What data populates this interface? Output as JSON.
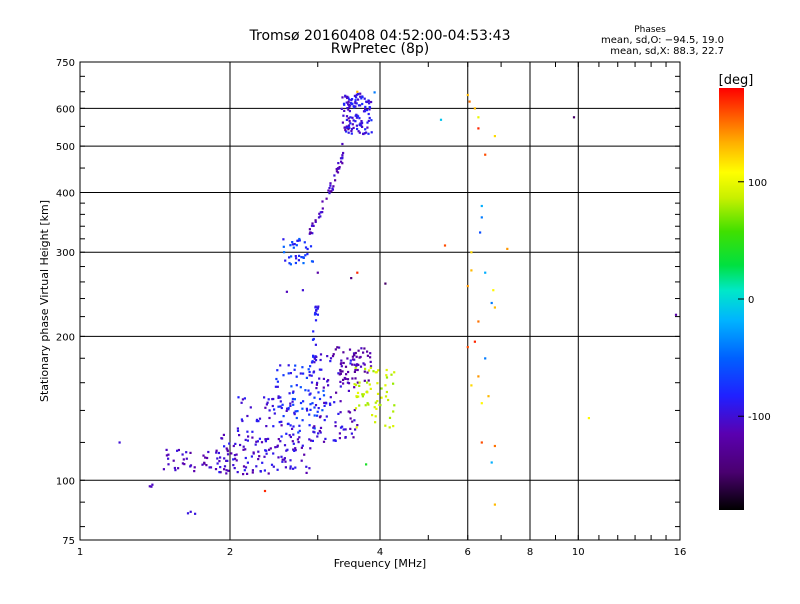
{
  "chart_data": {
    "type": "scatter",
    "title": "Tromsø 20160408 04:52:00-04:53:43",
    "subtitle": "RwPretec (8p)",
    "xlabel": "Frequency [MHz]",
    "ylabel": "Stationary phase Virtual Height [km]",
    "x_scale": "log",
    "y_scale": "log",
    "xlim": [
      1,
      16
    ],
    "ylim": [
      75,
      750
    ],
    "x_ticks": [
      1,
      2,
      4,
      6,
      8,
      10,
      16
    ],
    "x_tick_labels": [
      "1",
      "2",
      "4",
      "6",
      "8",
      "10",
      "16"
    ],
    "y_ticks": [
      75,
      100,
      200,
      300,
      400,
      500,
      600,
      750
    ],
    "y_tick_labels": [
      "75",
      "100",
      "200",
      "300",
      "400",
      "500",
      "600",
      "750"
    ],
    "grid": true,
    "phase_box": {
      "heading": "Phases",
      "line1": "mean, sd,O: −94.5, 19.0",
      "line2": "mean, sd,X:  88.3, 22.7"
    },
    "colorbar": {
      "label": "[deg]",
      "range": [
        -180,
        180
      ],
      "ticks": [
        100,
        0,
        -100
      ],
      "tick_labels": [
        "100",
        "0",
        "-100"
      ]
    },
    "clusters": [
      {
        "x_range": [
          1.45,
          2.0
        ],
        "y_range": [
          104,
          116
        ],
        "phase_range": [
          -125,
          -95
        ],
        "count": 45
      },
      {
        "x_range": [
          1.9,
          2.9
        ],
        "y_range": [
          103,
          125
        ],
        "phase_range": [
          -120,
          -85
        ],
        "count": 110
      },
      {
        "x_range": [
          2.05,
          2.7
        ],
        "y_range": [
          118,
          150
        ],
        "phase_range": [
          -115,
          -80
        ],
        "count": 55
      },
      {
        "x_range": [
          2.45,
          3.1
        ],
        "y_range": [
          125,
          175
        ],
        "phase_range": [
          -100,
          -55
        ],
        "count": 80
      },
      {
        "x_range": [
          2.9,
          3.6
        ],
        "y_range": [
          120,
          185
        ],
        "phase_range": [
          -125,
          -85
        ],
        "count": 90
      },
      {
        "x_range": [
          3.2,
          3.85
        ],
        "y_range": [
          160,
          190
        ],
        "phase_range": [
          -130,
          -105
        ],
        "count": 55
      },
      {
        "x_range": [
          3.55,
          4.3
        ],
        "y_range": [
          128,
          172
        ],
        "phase_range": [
          75,
          100
        ],
        "count": 60
      },
      {
        "x_range": [
          2.55,
          2.95
        ],
        "y_range": [
          283,
          320
        ],
        "phase_range": [
          -95,
          -45
        ],
        "count": 35
      },
      {
        "x_range": [
          3.35,
          3.85
        ],
        "y_range": [
          530,
          645
        ],
        "phase_range": [
          -110,
          -75
        ],
        "count": 110
      },
      {
        "x_range": [
          1.6,
          1.75
        ],
        "y_range": [
          85,
          86
        ],
        "phase_range": [
          -100,
          -95
        ],
        "count": 3
      },
      {
        "x_range": [
          1.35,
          1.4
        ],
        "y_range": [
          97,
          98
        ],
        "phase_range": [
          -110,
          -100
        ],
        "count": 3
      }
    ],
    "traces": [
      {
        "points": [
          [
            2.9,
            330
          ],
          [
            3.0,
            355
          ],
          [
            3.1,
            385
          ],
          [
            3.2,
            415
          ],
          [
            3.28,
            440
          ],
          [
            3.36,
            480
          ],
          [
            3.4,
            520
          ],
          [
            3.45,
            570
          ],
          [
            3.46,
            630
          ]
        ],
        "phase": -110,
        "count": 60
      },
      {
        "points": [
          [
            2.9,
            160
          ],
          [
            2.95,
            190
          ],
          [
            2.97,
            215
          ],
          [
            2.98,
            235
          ]
        ],
        "phase": -90,
        "count": 25
      }
    ],
    "scattered_points": [
      {
        "x": 6.0,
        "y": 640,
        "phase": 130
      },
      {
        "x": 6.05,
        "y": 620,
        "phase": 150
      },
      {
        "x": 6.2,
        "y": 600,
        "phase": 130
      },
      {
        "x": 6.3,
        "y": 575,
        "phase": 100
      },
      {
        "x": 6.5,
        "y": 480,
        "phase": 160
      },
      {
        "x": 6.8,
        "y": 525,
        "phase": 120
      },
      {
        "x": 6.3,
        "y": 545,
        "phase": 170
      },
      {
        "x": 6.4,
        "y": 375,
        "phase": -20
      },
      {
        "x": 6.4,
        "y": 355,
        "phase": -40
      },
      {
        "x": 6.35,
        "y": 330,
        "phase": -60
      },
      {
        "x": 6.1,
        "y": 300,
        "phase": 120
      },
      {
        "x": 6.0,
        "y": 255,
        "phase": 140
      },
      {
        "x": 6.1,
        "y": 275,
        "phase": 130
      },
      {
        "x": 6.5,
        "y": 272,
        "phase": -20
      },
      {
        "x": 6.75,
        "y": 250,
        "phase": 110
      },
      {
        "x": 6.7,
        "y": 235,
        "phase": -40
      },
      {
        "x": 6.8,
        "y": 230,
        "phase": 130
      },
      {
        "x": 6.3,
        "y": 215,
        "phase": 150
      },
      {
        "x": 6.2,
        "y": 195,
        "phase": 170
      },
      {
        "x": 6.0,
        "y": 190,
        "phase": 160
      },
      {
        "x": 6.5,
        "y": 180,
        "phase": -40
      },
      {
        "x": 6.3,
        "y": 165,
        "phase": 140
      },
      {
        "x": 6.1,
        "y": 158,
        "phase": 120
      },
      {
        "x": 6.6,
        "y": 150,
        "phase": 130
      },
      {
        "x": 6.4,
        "y": 145,
        "phase": 110
      },
      {
        "x": 6.4,
        "y": 120,
        "phase": 160
      },
      {
        "x": 6.8,
        "y": 118,
        "phase": 150
      },
      {
        "x": 6.7,
        "y": 109,
        "phase": -20
      },
      {
        "x": 6.8,
        "y": 89,
        "phase": 130
      },
      {
        "x": 5.3,
        "y": 568,
        "phase": -10
      },
      {
        "x": 5.4,
        "y": 310,
        "phase": 160
      },
      {
        "x": 7.2,
        "y": 305,
        "phase": 140
      },
      {
        "x": 9.8,
        "y": 575,
        "phase": -150
      },
      {
        "x": 10.5,
        "y": 135,
        "phase": 110
      },
      {
        "x": 15.7,
        "y": 222,
        "phase": -120
      },
      {
        "x": 4.1,
        "y": 258,
        "phase": -150
      },
      {
        "x": 3.6,
        "y": 272,
        "phase": 170
      },
      {
        "x": 3.5,
        "y": 265,
        "phase": -140
      },
      {
        "x": 3.0,
        "y": 272,
        "phase": -120
      },
      {
        "x": 2.6,
        "y": 248,
        "phase": -110
      },
      {
        "x": 2.8,
        "y": 250,
        "phase": -100
      },
      {
        "x": 2.35,
        "y": 95,
        "phase": 170
      },
      {
        "x": 3.75,
        "y": 108,
        "phase": 40
      },
      {
        "x": 1.2,
        "y": 120,
        "phase": -100
      },
      {
        "x": 3.6,
        "y": 650,
        "phase": 130
      },
      {
        "x": 3.9,
        "y": 648,
        "phase": -40
      }
    ]
  }
}
